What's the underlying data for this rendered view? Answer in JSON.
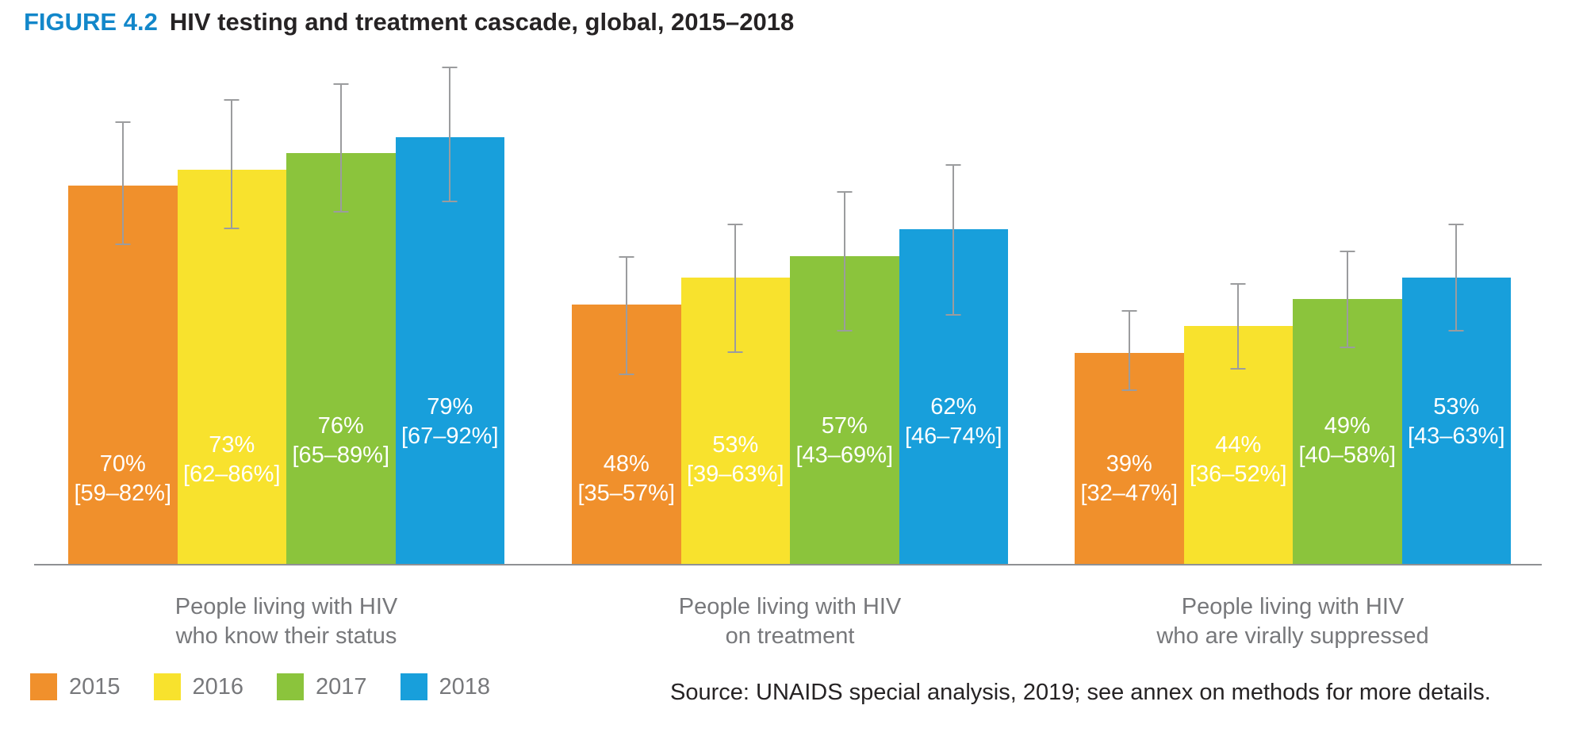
{
  "header": {
    "figure_label": "FIGURE 4.2",
    "title": "HIV testing and treatment cascade, global, 2015–2018"
  },
  "chart_data": {
    "type": "bar",
    "title": "HIV testing and treatment cascade, global, 2015–2018",
    "unit": "percent",
    "ylim": [
      0,
      100
    ],
    "grid": false,
    "error_bars": true,
    "legend_position": "bottom-left",
    "categories": [
      {
        "line1": "People living with HIV",
        "line2": "who know their status"
      },
      {
        "line1": "People living with HIV",
        "line2": "on treatment"
      },
      {
        "line1": "People living with HIV",
        "line2": "who are virally suppressed"
      }
    ],
    "series": [
      {
        "name": "2015",
        "color": "#F0902C",
        "values": [
          70,
          48,
          39
        ],
        "ci": [
          [
            59,
            82
          ],
          [
            35,
            57
          ],
          [
            32,
            47
          ]
        ],
        "value_labels": [
          "70%",
          "48%",
          "39%"
        ],
        "ci_labels": [
          "[59–82%]",
          "[35–57%]",
          "[32–47%]"
        ]
      },
      {
        "name": "2016",
        "color": "#F8E22D",
        "values": [
          73,
          53,
          44
        ],
        "ci": [
          [
            62,
            86
          ],
          [
            39,
            63
          ],
          [
            36,
            52
          ]
        ],
        "value_labels": [
          "73%",
          "53%",
          "44%"
        ],
        "ci_labels": [
          "[62–86%]",
          "[39–63%]",
          "[36–52%]"
        ]
      },
      {
        "name": "2017",
        "color": "#8BC43C",
        "values": [
          76,
          57,
          49
        ],
        "ci": [
          [
            65,
            89
          ],
          [
            43,
            69
          ],
          [
            40,
            58
          ]
        ],
        "value_labels": [
          "76%",
          "57%",
          "49%"
        ],
        "ci_labels": [
          "[65–89%]",
          "[43–69%]",
          "[40–58%]"
        ]
      },
      {
        "name": "2018",
        "color": "#189FDB",
        "values": [
          79,
          62,
          53
        ],
        "ci": [
          [
            67,
            92
          ],
          [
            46,
            74
          ],
          [
            43,
            63
          ]
        ],
        "value_labels": [
          "79%",
          "62%",
          "53%"
        ],
        "ci_labels": [
          "[67–92%]",
          "[46–74%]",
          "[43–63%]"
        ]
      }
    ]
  },
  "legend": [
    {
      "label": "2015",
      "color": "#F0902C"
    },
    {
      "label": "2016",
      "color": "#F8E22D"
    },
    {
      "label": "2017",
      "color": "#8BC43C"
    },
    {
      "label": "2018",
      "color": "#189FDB"
    }
  ],
  "source": "Source: UNAIDS special analysis, 2019; see annex on methods for more details.",
  "colors": {
    "figure_label": "#1287CA",
    "title_text": "#262324",
    "bar_2015": "#F0902C",
    "bar_2016": "#F8E22D",
    "bar_2017": "#8BC43C",
    "bar_2018": "#189FDB",
    "axis_line": "#8F9194",
    "error_bar": "#9B9C9E",
    "category_text": "#77787B",
    "legend_text": "#77787B",
    "source_text": "#262324"
  }
}
